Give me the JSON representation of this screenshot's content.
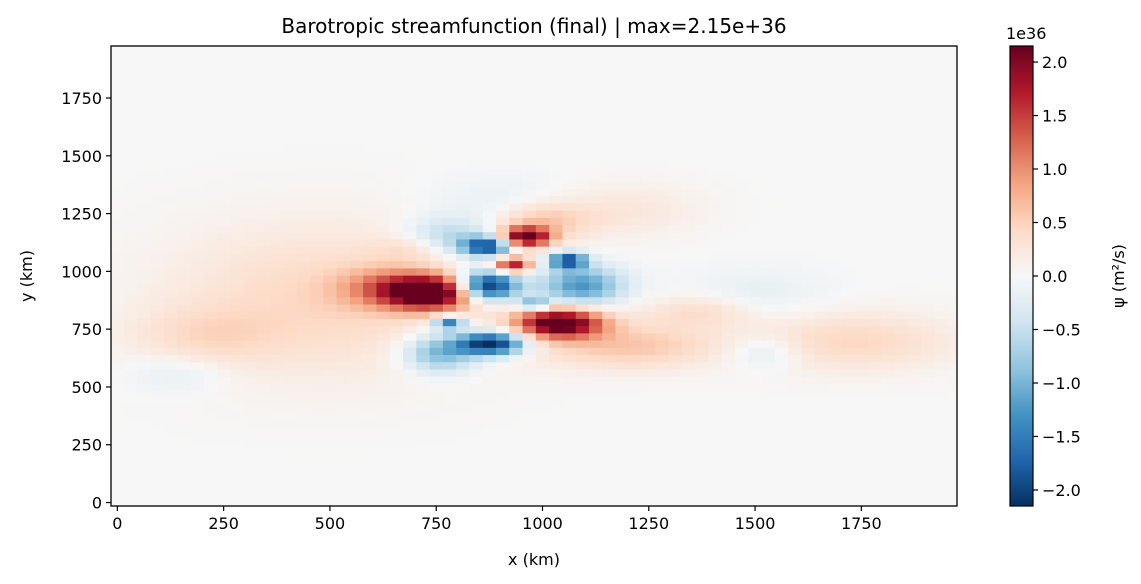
{
  "chart_data": {
    "type": "heatmap",
    "title": "Barotropic streamfunction (final) | max=2.15e+36",
    "xlabel": "x (km)",
    "ylabel": "y (km)",
    "xlim": [
      -15,
      1975
    ],
    "ylim": [
      -15,
      1975
    ],
    "xticks": [
      0,
      250,
      500,
      750,
      1000,
      1250,
      1500,
      1750
    ],
    "yticks": [
      0,
      250,
      500,
      750,
      1000,
      1250,
      1500,
      1750
    ],
    "grid": false,
    "colormap": "RdBu_r",
    "colorbar": {
      "label": "ψ (m²/s)",
      "offset_text": "1e36",
      "range": [
        -2.15,
        2.15
      ],
      "ticks": [
        "−2.0",
        "−1.5",
        "−1.0",
        "−0.5",
        "0.0",
        "0.5",
        "1.0",
        "1.5",
        "2.0"
      ],
      "tick_values": [
        -2.0,
        -1.5,
        -1.0,
        -0.5,
        0.0,
        0.5,
        1.0,
        1.5,
        2.0
      ]
    },
    "cell_size_km": 31.25,
    "features": [
      {
        "x": 490,
        "y": 880,
        "sx": 260,
        "sy": 230,
        "amp": 0.45
      },
      {
        "x": 200,
        "y": 720,
        "sx": 120,
        "sy": 90,
        "amp": 0.3
      },
      {
        "x": 740,
        "y": 910,
        "sx": 70,
        "sy": 50,
        "amp": 2.3
      },
      {
        "x": 640,
        "y": 930,
        "sx": 80,
        "sy": 60,
        "amp": 0.9
      },
      {
        "x": 1040,
        "y": 780,
        "sx": 70,
        "sy": 45,
        "amp": 2.4
      },
      {
        "x": 1200,
        "y": 680,
        "sx": 150,
        "sy": 70,
        "amp": 0.6
      },
      {
        "x": 1370,
        "y": 830,
        "sx": 90,
        "sy": 50,
        "amp": 0.4
      },
      {
        "x": 1730,
        "y": 700,
        "sx": 170,
        "sy": 90,
        "amp": 0.45
      },
      {
        "x": 960,
        "y": 1150,
        "sx": 40,
        "sy": 30,
        "amp": 2.2
      },
      {
        "x": 1000,
        "y": 1220,
        "sx": 80,
        "sy": 60,
        "amp": 0.6
      },
      {
        "x": 930,
        "y": 1030,
        "sx": 30,
        "sy": 25,
        "amp": 1.8
      },
      {
        "x": 1200,
        "y": 1270,
        "sx": 120,
        "sy": 80,
        "amp": 0.25
      },
      {
        "x": 870,
        "y": 940,
        "sx": 50,
        "sy": 45,
        "amp": -2.4
      },
      {
        "x": 880,
        "y": 690,
        "sx": 55,
        "sy": 35,
        "amp": -2.3
      },
      {
        "x": 870,
        "y": 1110,
        "sx": 40,
        "sy": 30,
        "amp": -2.0
      },
      {
        "x": 1090,
        "y": 940,
        "sx": 70,
        "sy": 60,
        "amp": -1.3
      },
      {
        "x": 1060,
        "y": 1050,
        "sx": 30,
        "sy": 25,
        "amp": -1.9
      },
      {
        "x": 760,
        "y": 650,
        "sx": 60,
        "sy": 60,
        "amp": -1.1
      },
      {
        "x": 780,
        "y": 1150,
        "sx": 70,
        "sy": 60,
        "amp": -0.7
      },
      {
        "x": 780,
        "y": 780,
        "sx": 25,
        "sy": 20,
        "amp": -1.6
      },
      {
        "x": 980,
        "y": 860,
        "sx": 25,
        "sy": 20,
        "amp": -1.2
      },
      {
        "x": 140,
        "y": 560,
        "sx": 80,
        "sy": 60,
        "amp": -0.25
      },
      {
        "x": 1520,
        "y": 650,
        "sx": 60,
        "sy": 50,
        "amp": -0.35
      },
      {
        "x": 1500,
        "y": 900,
        "sx": 120,
        "sy": 80,
        "amp": -0.2
      },
      {
        "x": 900,
        "y": 1300,
        "sx": 120,
        "sy": 80,
        "amp": -0.2
      },
      {
        "x": 700,
        "y": 1100,
        "sx": 60,
        "sy": 40,
        "amp": 0.3
      }
    ]
  }
}
